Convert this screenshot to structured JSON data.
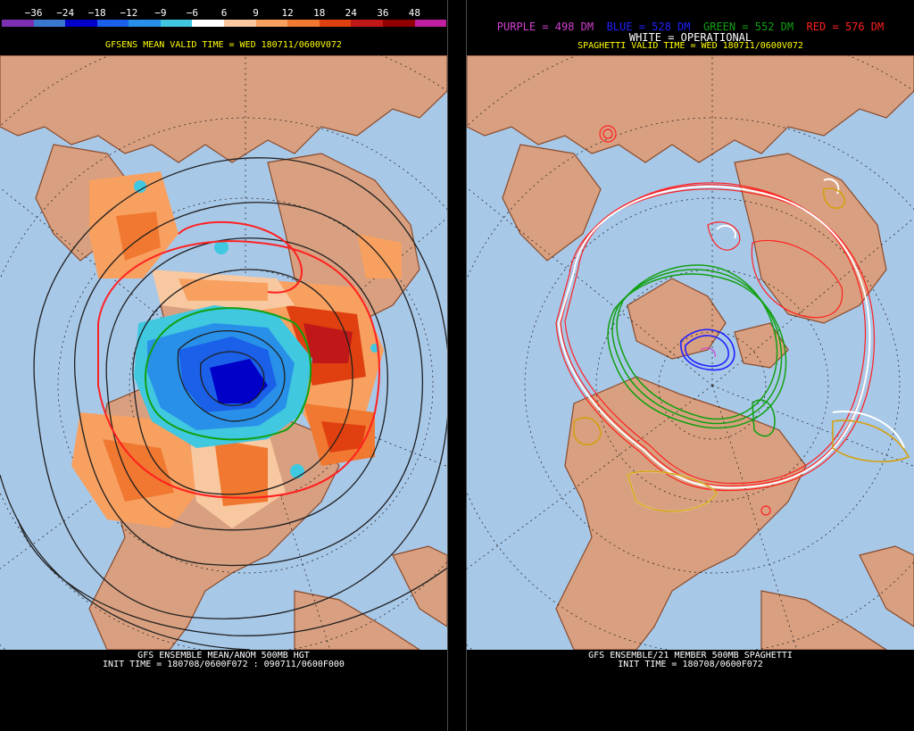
{
  "left": {
    "colorbar": {
      "labels": [
        "−36",
        "−24",
        "−18",
        "−12",
        "−9",
        "−6",
        "6",
        "9",
        "12",
        "18",
        "24",
        "36",
        "48"
      ],
      "colors": [
        "#7a30b0",
        "#3a78d0",
        "#0000c8",
        "#1a60e8",
        "#2890e8",
        "#40c8e0",
        "#ffffff",
        "#f8c8a0",
        "#f8a060",
        "#f07830",
        "#e04010",
        "#c01818",
        "#900000",
        "#c020a0"
      ]
    },
    "subtitle": "GFSENS MEAN VALID TIME = WED 180711/0600V072",
    "footer_line1": "GFS ENSEMBLE MEAN/ANOM 500MB HGT",
    "footer_line2": "INIT TIME = 180708/0600F072 : 090711/0600F000"
  },
  "right": {
    "legend": [
      {
        "text": "PURPLE = 498 DM",
        "color": "#d040d0"
      },
      {
        "text": "BLUE = 528 DM",
        "color": "#2020ff"
      },
      {
        "text": "GREEN = 552 DM",
        "color": "#10a010"
      },
      {
        "text": "RED = 576 DM",
        "color": "#ff2020"
      }
    ],
    "legend_white": "WHITE = OPERATIONAL",
    "subtitle": "SPAGHETTI VALID TIME = WED 180711/0600V072",
    "footer_line1": "GFS ENSEMBLE/21 MEMBER 500MB SPAGHETTI",
    "footer_line2": "INIT TIME = 180708/0600F072"
  },
  "colors": {
    "ocean": "#a8c8e8",
    "land": "#d8a080",
    "border": "#8a4a2a",
    "subtitle_left": "#ffff00",
    "subtitle_right": "#ffff00"
  }
}
